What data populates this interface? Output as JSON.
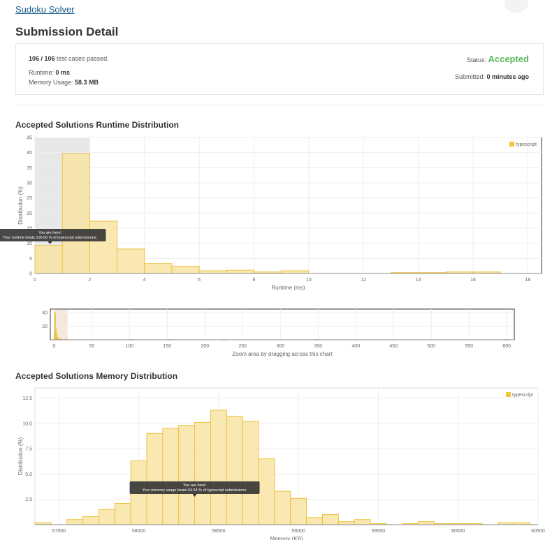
{
  "problem_link": "Sudoku Solver",
  "page_title": "Submission Detail",
  "summary": {
    "passed": "106 / 106",
    "passed_suffix": " test cases passed.",
    "runtime_label": "Runtime: ",
    "runtime_value": "0 ms",
    "memory_label": "Memory Usage: ",
    "memory_value": "58.3 MB",
    "status_label": "Status: ",
    "status_value": "Accepted",
    "submitted_label": "Submitted: ",
    "submitted_value": "0 minutes ago"
  },
  "colors": {
    "bar_fill": "#f9e4a6",
    "bar_stroke": "#ecc23c",
    "accepted": "#5cb85c",
    "highlight": "#e8e8e8"
  },
  "runtime_section_title": "Accepted Solutions Runtime Distribution",
  "memory_section_title": "Accepted Solutions Memory Distribution",
  "runtime_tooltip": [
    "You are here!",
    "Your runtime beats 100.00 % of typescript submissions."
  ],
  "memory_tooltip": [
    "You are here!",
    "Your memory usage beats 64.64 % of typescript submissions."
  ],
  "chart_data": [
    {
      "type": "bar",
      "xlabel": "Runtime (ms)",
      "ylabel": "Distribution (%)",
      "xlim": [
        0,
        18.5
      ],
      "ylim": [
        0,
        45
      ],
      "xticks": [
        0,
        2,
        4,
        6,
        8,
        10,
        12,
        14,
        16,
        18
      ],
      "yticks": [
        0,
        5,
        10,
        15,
        20,
        25,
        30,
        35,
        40,
        45
      ],
      "legend": "typescript",
      "legend_position": "top-right",
      "highlight_range": [
        0,
        2
      ],
      "series": [
        {
          "name": "typescript",
          "bins": [
            [
              0,
              1,
              9.3
            ],
            [
              1,
              2,
              39.6
            ],
            [
              2,
              3,
              17.3
            ],
            [
              3,
              4,
              8.1
            ],
            [
              4,
              5,
              3.3
            ],
            [
              5,
              6,
              2.4
            ],
            [
              6,
              7,
              0.9
            ],
            [
              7,
              8,
              1.1
            ],
            [
              8,
              9,
              0.5
            ],
            [
              9,
              10,
              0.9
            ],
            [
              13,
              14,
              0.3
            ],
            [
              14,
              15,
              0.3
            ],
            [
              15,
              16,
              0.5
            ],
            [
              16,
              17,
              0.5
            ]
          ]
        }
      ]
    },
    {
      "type": "bar",
      "xlabel": "Zoom area by dragging across this chart",
      "xlim": [
        -5,
        610
      ],
      "ylim": [
        0,
        45
      ],
      "xticks": [
        0,
        50,
        100,
        150,
        200,
        250,
        300,
        350,
        400,
        450,
        500,
        550,
        600
      ],
      "yticks": [
        20,
        40
      ],
      "zoom_range": [
        0,
        18
      ],
      "series": [
        {
          "name": "typescript",
          "bins": [
            [
              0,
              1,
              9.3
            ],
            [
              1,
              2,
              39.6
            ],
            [
              2,
              3,
              17.3
            ],
            [
              3,
              4,
              8.1
            ],
            [
              4,
              5,
              3.3
            ],
            [
              5,
              6,
              2.4
            ],
            [
              6,
              7,
              0.9
            ],
            [
              7,
              8,
              1.1
            ],
            [
              8,
              9,
              0.5
            ],
            [
              9,
              10,
              0.9
            ],
            [
              13,
              14,
              0.3
            ],
            [
              14,
              15,
              0.3
            ],
            [
              15,
              16,
              0.5
            ],
            [
              16,
              17,
              0.5
            ],
            [
              100,
              106,
              0.3
            ],
            [
              152,
              158,
              0.3
            ],
            [
              222,
              228,
              0.3
            ],
            [
              345,
              351,
              0.3
            ],
            [
              597,
              603,
              0.3
            ]
          ]
        }
      ]
    },
    {
      "type": "bar",
      "xlabel": "Memory (KB)",
      "ylabel": "Distribution (%)",
      "xlim": [
        57350,
        60500
      ],
      "ylim": [
        0,
        13.5
      ],
      "xticks": [
        57500,
        58000,
        58500,
        59000,
        59500,
        60000,
        60500
      ],
      "yticks": [
        2.5,
        5.0,
        7.5,
        10.0,
        12.5
      ],
      "legend": "typescript",
      "legend_position": "top-right",
      "series": [
        {
          "name": "typescript",
          "bins": [
            [
              57350,
              57450,
              0.2
            ],
            [
              57550,
              57650,
              0.5
            ],
            [
              57650,
              57750,
              0.8
            ],
            [
              57750,
              57850,
              1.5
            ],
            [
              57850,
              57950,
              2.1
            ],
            [
              57950,
              58050,
              6.3
            ],
            [
              58050,
              58150,
              9.0
            ],
            [
              58150,
              58250,
              9.5
            ],
            [
              58250,
              58350,
              9.8
            ],
            [
              58350,
              58450,
              10.1
            ],
            [
              58450,
              58550,
              11.3
            ],
            [
              58550,
              58650,
              10.7
            ],
            [
              58650,
              58750,
              10.2
            ],
            [
              58750,
              58850,
              6.5
            ],
            [
              58850,
              58950,
              3.3
            ],
            [
              58950,
              59050,
              2.6
            ],
            [
              59050,
              59150,
              0.7
            ],
            [
              59150,
              59250,
              1.0
            ],
            [
              59250,
              59350,
              0.3
            ],
            [
              59350,
              59450,
              0.5
            ],
            [
              59450,
              59550,
              0.1
            ],
            [
              59650,
              59750,
              0.1
            ],
            [
              59750,
              59850,
              0.3
            ],
            [
              59850,
              59950,
              0.1
            ],
            [
              59950,
              60050,
              0.1
            ],
            [
              60050,
              60150,
              0.1
            ],
            [
              60250,
              60350,
              0.2
            ],
            [
              60350,
              60450,
              0.2
            ]
          ]
        }
      ]
    }
  ]
}
